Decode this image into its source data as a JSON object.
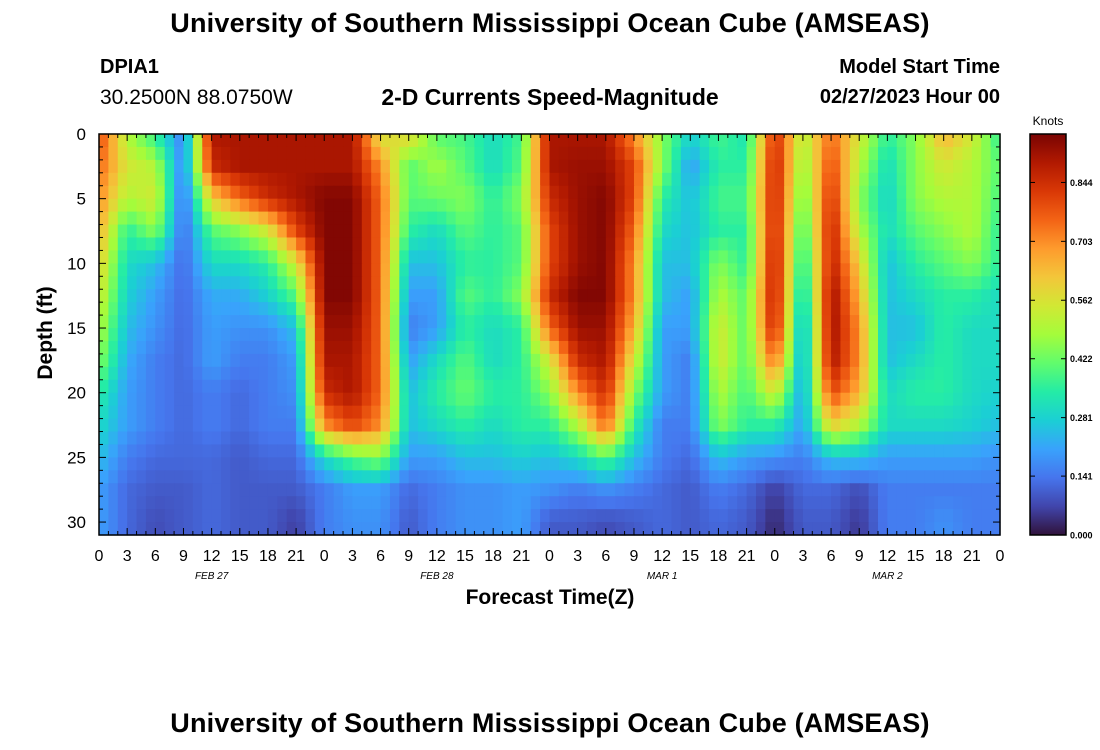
{
  "header": {
    "title": "University of Southern Mississippi Ocean Cube (AMSEAS)",
    "footer_title": "University of Southern Mississippi Ocean Cube (AMSEAS)",
    "station_id": "DPIA1",
    "station_coords": "30.2500N  88.0750W",
    "start_label": "Model Start Time",
    "start_value": "02/27/2023 Hour 00"
  },
  "chart_data": {
    "type": "heatmap",
    "title": "2-D Currents Speed-Magnitude",
    "xlabel": "Forecast Time(Z)",
    "ylabel": "Depth (ft)",
    "x_range_hours": [
      0,
      96
    ],
    "y_range_ft": [
      0,
      31
    ],
    "x_ticks": [
      {
        "hour": 0,
        "label": "0"
      },
      {
        "hour": 3,
        "label": "3"
      },
      {
        "hour": 6,
        "label": "6"
      },
      {
        "hour": 9,
        "label": "9"
      },
      {
        "hour": 12,
        "label": "12"
      },
      {
        "hour": 15,
        "label": "15"
      },
      {
        "hour": 18,
        "label": "18"
      },
      {
        "hour": 21,
        "label": "21"
      },
      {
        "hour": 24,
        "label": "0"
      },
      {
        "hour": 27,
        "label": "3"
      },
      {
        "hour": 30,
        "label": "6"
      },
      {
        "hour": 33,
        "label": "9"
      },
      {
        "hour": 36,
        "label": "12"
      },
      {
        "hour": 39,
        "label": "15"
      },
      {
        "hour": 42,
        "label": "18"
      },
      {
        "hour": 45,
        "label": "21"
      },
      {
        "hour": 48,
        "label": "0"
      },
      {
        "hour": 51,
        "label": "3"
      },
      {
        "hour": 54,
        "label": "6"
      },
      {
        "hour": 57,
        "label": "9"
      },
      {
        "hour": 60,
        "label": "12"
      },
      {
        "hour": 63,
        "label": "15"
      },
      {
        "hour": 66,
        "label": "18"
      },
      {
        "hour": 69,
        "label": "21"
      },
      {
        "hour": 72,
        "label": "0"
      },
      {
        "hour": 75,
        "label": "3"
      },
      {
        "hour": 78,
        "label": "6"
      },
      {
        "hour": 81,
        "label": "9"
      },
      {
        "hour": 84,
        "label": "12"
      },
      {
        "hour": 87,
        "label": "15"
      },
      {
        "hour": 90,
        "label": "18"
      },
      {
        "hour": 93,
        "label": "21"
      },
      {
        "hour": 96,
        "label": "0"
      }
    ],
    "y_ticks": [
      0,
      5,
      10,
      15,
      20,
      25,
      30
    ],
    "date_labels": [
      {
        "hour": 12,
        "label": "FEB 27"
      },
      {
        "hour": 36,
        "label": "FEB 28"
      },
      {
        "hour": 60,
        "label": "MAR 1"
      },
      {
        "hour": 84,
        "label": "MAR 2"
      }
    ],
    "colorbar": {
      "unit_label": "Knots",
      "range": [
        0.0,
        0.96
      ],
      "ticks": [
        "0.844",
        "0.703",
        "0.562",
        "0.422",
        "0.281",
        "0.141",
        "0.000"
      ],
      "tick_values": [
        0.844,
        0.703,
        0.562,
        0.422,
        0.281,
        0.141,
        0.0
      ]
    },
    "grid": false,
    "legend": "right colorbar",
    "cells": {
      "hours": [
        0,
        3,
        6,
        9,
        12,
        15,
        18,
        21,
        24,
        27,
        30,
        33,
        36,
        39,
        42,
        45,
        48,
        51,
        54,
        57,
        60,
        63,
        66,
        69,
        72,
        75,
        78,
        81,
        84,
        87,
        90,
        93,
        96
      ],
      "depths_ft": [
        0,
        2.5,
        5,
        7.5,
        10,
        12.5,
        15,
        17.5,
        20,
        22.5,
        25,
        27.5,
        30
      ],
      "values": [
        [
          0.8,
          0.5,
          0.35,
          0.15,
          0.9,
          0.9,
          0.9,
          0.9,
          0.9,
          0.9,
          0.55,
          0.6,
          0.4,
          0.38,
          0.3,
          0.38,
          0.9,
          0.9,
          0.9,
          0.7,
          0.45,
          0.28,
          0.38,
          0.32,
          0.85,
          0.5,
          0.75,
          0.55,
          0.35,
          0.45,
          0.65,
          0.55,
          0.35
        ],
        [
          0.75,
          0.55,
          0.5,
          0.15,
          0.85,
          0.9,
          0.9,
          0.9,
          0.9,
          0.9,
          0.7,
          0.4,
          0.48,
          0.4,
          0.3,
          0.4,
          0.9,
          0.92,
          0.92,
          0.8,
          0.45,
          0.2,
          0.35,
          0.35,
          0.88,
          0.45,
          0.8,
          0.5,
          0.3,
          0.45,
          0.55,
          0.5,
          0.4
        ],
        [
          0.7,
          0.5,
          0.55,
          0.12,
          0.6,
          0.75,
          0.85,
          0.9,
          0.95,
          0.95,
          0.75,
          0.4,
          0.42,
          0.45,
          0.35,
          0.45,
          0.85,
          0.92,
          0.95,
          0.8,
          0.35,
          0.25,
          0.38,
          0.38,
          0.88,
          0.4,
          0.85,
          0.45,
          0.28,
          0.45,
          0.5,
          0.5,
          0.38
        ],
        [
          0.65,
          0.35,
          0.45,
          0.12,
          0.4,
          0.45,
          0.55,
          0.8,
          0.95,
          0.95,
          0.75,
          0.35,
          0.3,
          0.4,
          0.35,
          0.4,
          0.8,
          0.92,
          0.95,
          0.75,
          0.3,
          0.25,
          0.35,
          0.35,
          0.88,
          0.35,
          0.88,
          0.5,
          0.3,
          0.4,
          0.45,
          0.5,
          0.35
        ],
        [
          0.6,
          0.3,
          0.25,
          0.12,
          0.3,
          0.3,
          0.35,
          0.55,
          0.95,
          0.95,
          0.75,
          0.25,
          0.25,
          0.35,
          0.35,
          0.4,
          0.8,
          0.92,
          0.95,
          0.7,
          0.25,
          0.25,
          0.45,
          0.35,
          0.9,
          0.3,
          0.88,
          0.6,
          0.25,
          0.35,
          0.4,
          0.45,
          0.35
        ],
        [
          0.55,
          0.28,
          0.2,
          0.12,
          0.22,
          0.22,
          0.28,
          0.4,
          0.95,
          0.95,
          0.75,
          0.2,
          0.2,
          0.4,
          0.35,
          0.45,
          0.85,
          0.95,
          0.95,
          0.7,
          0.25,
          0.2,
          0.5,
          0.4,
          0.9,
          0.25,
          0.92,
          0.65,
          0.25,
          0.3,
          0.35,
          0.35,
          0.3
        ],
        [
          0.5,
          0.25,
          0.18,
          0.12,
          0.2,
          0.18,
          0.18,
          0.25,
          0.92,
          0.92,
          0.75,
          0.15,
          0.2,
          0.35,
          0.3,
          0.35,
          0.75,
          0.92,
          0.92,
          0.65,
          0.2,
          0.2,
          0.55,
          0.4,
          0.88,
          0.2,
          0.92,
          0.7,
          0.25,
          0.25,
          0.35,
          0.3,
          0.3
        ],
        [
          0.45,
          0.22,
          0.15,
          0.12,
          0.2,
          0.15,
          0.15,
          0.2,
          0.9,
          0.9,
          0.75,
          0.2,
          0.3,
          0.4,
          0.3,
          0.35,
          0.55,
          0.85,
          0.9,
          0.55,
          0.2,
          0.15,
          0.55,
          0.4,
          0.75,
          0.2,
          0.9,
          0.7,
          0.25,
          0.3,
          0.35,
          0.3,
          0.3
        ],
        [
          0.35,
          0.2,
          0.15,
          0.12,
          0.15,
          0.12,
          0.15,
          0.18,
          0.85,
          0.9,
          0.75,
          0.25,
          0.35,
          0.42,
          0.35,
          0.35,
          0.45,
          0.7,
          0.85,
          0.45,
          0.2,
          0.15,
          0.5,
          0.38,
          0.55,
          0.2,
          0.8,
          0.65,
          0.3,
          0.35,
          0.35,
          0.3,
          0.28
        ],
        [
          0.3,
          0.2,
          0.15,
          0.12,
          0.15,
          0.12,
          0.15,
          0.15,
          0.7,
          0.8,
          0.7,
          0.25,
          0.3,
          0.35,
          0.3,
          0.35,
          0.35,
          0.5,
          0.75,
          0.35,
          0.15,
          0.15,
          0.45,
          0.35,
          0.35,
          0.2,
          0.6,
          0.5,
          0.3,
          0.3,
          0.3,
          0.28,
          0.25
        ],
        [
          0.25,
          0.15,
          0.12,
          0.12,
          0.12,
          0.1,
          0.12,
          0.12,
          0.3,
          0.4,
          0.45,
          0.2,
          0.2,
          0.25,
          0.25,
          0.28,
          0.25,
          0.3,
          0.4,
          0.25,
          0.15,
          0.12,
          0.25,
          0.2,
          0.18,
          0.15,
          0.25,
          0.25,
          0.2,
          0.2,
          0.2,
          0.2,
          0.18
        ],
        [
          0.2,
          0.12,
          0.1,
          0.1,
          0.12,
          0.1,
          0.1,
          0.1,
          0.15,
          0.2,
          0.2,
          0.12,
          0.15,
          0.18,
          0.18,
          0.2,
          0.18,
          0.15,
          0.18,
          0.15,
          0.12,
          0.1,
          0.15,
          0.12,
          0.06,
          0.12,
          0.12,
          0.08,
          0.15,
          0.15,
          0.15,
          0.15,
          0.15
        ],
        [
          0.2,
          0.12,
          0.08,
          0.1,
          0.12,
          0.1,
          0.1,
          0.06,
          0.15,
          0.18,
          0.18,
          0.1,
          0.15,
          0.18,
          0.18,
          0.2,
          0.1,
          0.1,
          0.08,
          0.1,
          0.12,
          0.1,
          0.12,
          0.1,
          0.03,
          0.1,
          0.1,
          0.05,
          0.15,
          0.15,
          0.18,
          0.15,
          0.15
        ]
      ]
    }
  },
  "colors": {
    "colormap": [
      "#30123b",
      "#4145ab",
      "#4675ed",
      "#39a2fc",
      "#1bcfd4",
      "#24eca6",
      "#61fc6c",
      "#a4fc3b",
      "#d1e834",
      "#f3c63a",
      "#fe9b2d",
      "#f36315",
      "#d93806",
      "#b11901",
      "#7a0403"
    ]
  }
}
